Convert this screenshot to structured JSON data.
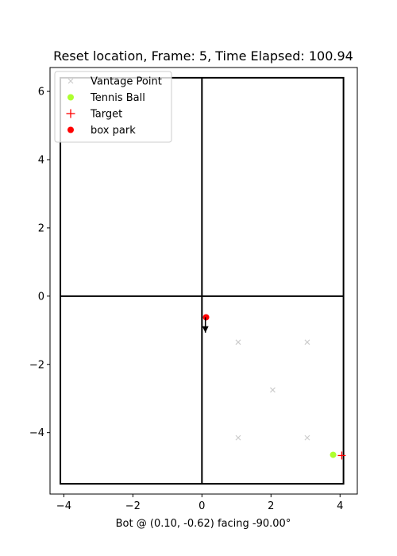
{
  "chart_data": {
    "type": "scatter",
    "title": "Reset location, Frame: 5, Time Elapsed: 100.94",
    "xlabel": "Bot @ (0.10, -0.62) facing -90.00°",
    "ylabel": "",
    "xlim": [
      -4.4,
      4.5
    ],
    "ylim": [
      -5.8,
      6.7
    ],
    "x_ticks": [
      -4,
      -2,
      0,
      2,
      4
    ],
    "y_ticks": [
      -4,
      -2,
      0,
      2,
      4,
      6
    ],
    "grid": false,
    "legend_position": "upper-left",
    "field": {
      "border": {
        "x0": -4.1,
        "x1": 4.1,
        "y0": -5.5,
        "y1": 6.4
      },
      "center_vertical_x": 0.0,
      "center_horizontal_y": 0.0,
      "color": "#000000"
    },
    "series": [
      {
        "name": "Vantage Point",
        "marker": "x",
        "color": "#cccccc",
        "points": [
          [
            1.05,
            -1.35
          ],
          [
            3.05,
            -1.35
          ],
          [
            2.05,
            -2.75
          ],
          [
            1.05,
            -4.15
          ],
          [
            3.05,
            -4.15
          ]
        ]
      },
      {
        "name": "Tennis Ball",
        "marker": "circle",
        "color": "#adff2f",
        "points": [
          [
            3.8,
            -4.65
          ]
        ]
      },
      {
        "name": "Target",
        "marker": "plus",
        "color": "#ff0000",
        "points": [
          [
            4.05,
            -4.67
          ]
        ]
      },
      {
        "name": "box park",
        "marker": "circle",
        "color": "#ff0000",
        "points": [
          [
            0.12,
            -0.62
          ]
        ]
      }
    ],
    "bot": {
      "x": 0.1,
      "y": -0.62,
      "heading_deg": -90.0,
      "arrow_length": 0.45,
      "color": "#000000"
    }
  }
}
